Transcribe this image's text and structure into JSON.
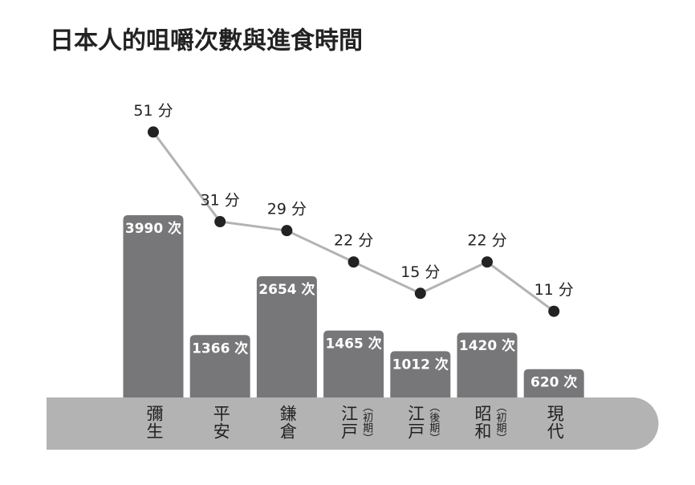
{
  "chart_data": {
    "type": "combo",
    "title": "日本人的咀嚼次數與進食時間",
    "categories": [
      "彌生",
      "平安",
      "鎌倉",
      "江戸",
      "江戸",
      "昭和",
      "現代"
    ],
    "category_notes": [
      null,
      null,
      null,
      "（初期）",
      "（後期）",
      "（初期）",
      null
    ],
    "series": [
      {
        "type": "bar",
        "color": "#77777a",
        "values": [
          3990,
          1366,
          2654,
          1465,
          1012,
          1420,
          620
        ],
        "value_labels": [
          "3990 次",
          "1366 次",
          "2654 次",
          "1465 次",
          "1012 次",
          "1420 次",
          "620 次"
        ]
      },
      {
        "type": "line",
        "color": "#b3b3b3",
        "marker_color": "#222222",
        "values": [
          51,
          31,
          29,
          22,
          15,
          22,
          11
        ],
        "value_labels": [
          "51 分",
          "31 分",
          "29 分",
          "22 分",
          "15 分",
          "22 分",
          "11 分"
        ]
      }
    ]
  }
}
